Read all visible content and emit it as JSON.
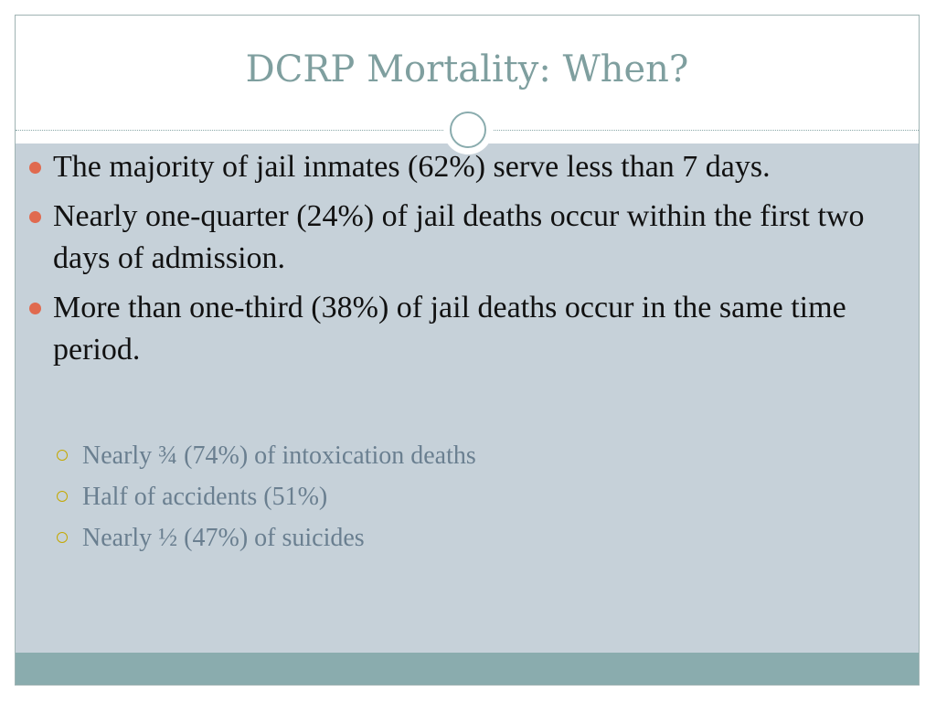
{
  "slide": {
    "title": "DCRP Mortality: When?",
    "bullets": [
      "The majority of jail inmates (62%) serve less than 7 days.",
      "Nearly one-quarter (24%) of jail deaths occur within the first two days of admission.",
      "More than one-third (38%) of jail deaths occur in the same time period."
    ],
    "subbullets": [
      "Nearly ¾ (74%) of intoxication deaths",
      "Half of accidents (51%)",
      "Nearly ½ (47%) of suicides"
    ]
  },
  "colors": {
    "title": "#7f9f9f",
    "content_background": "#c6d1d9",
    "footer_bar": "#8aacae",
    "bullet_marker": "#e06a4f",
    "subbullet_marker": "#c4a800",
    "subbullet_text": "#6a7f90"
  }
}
